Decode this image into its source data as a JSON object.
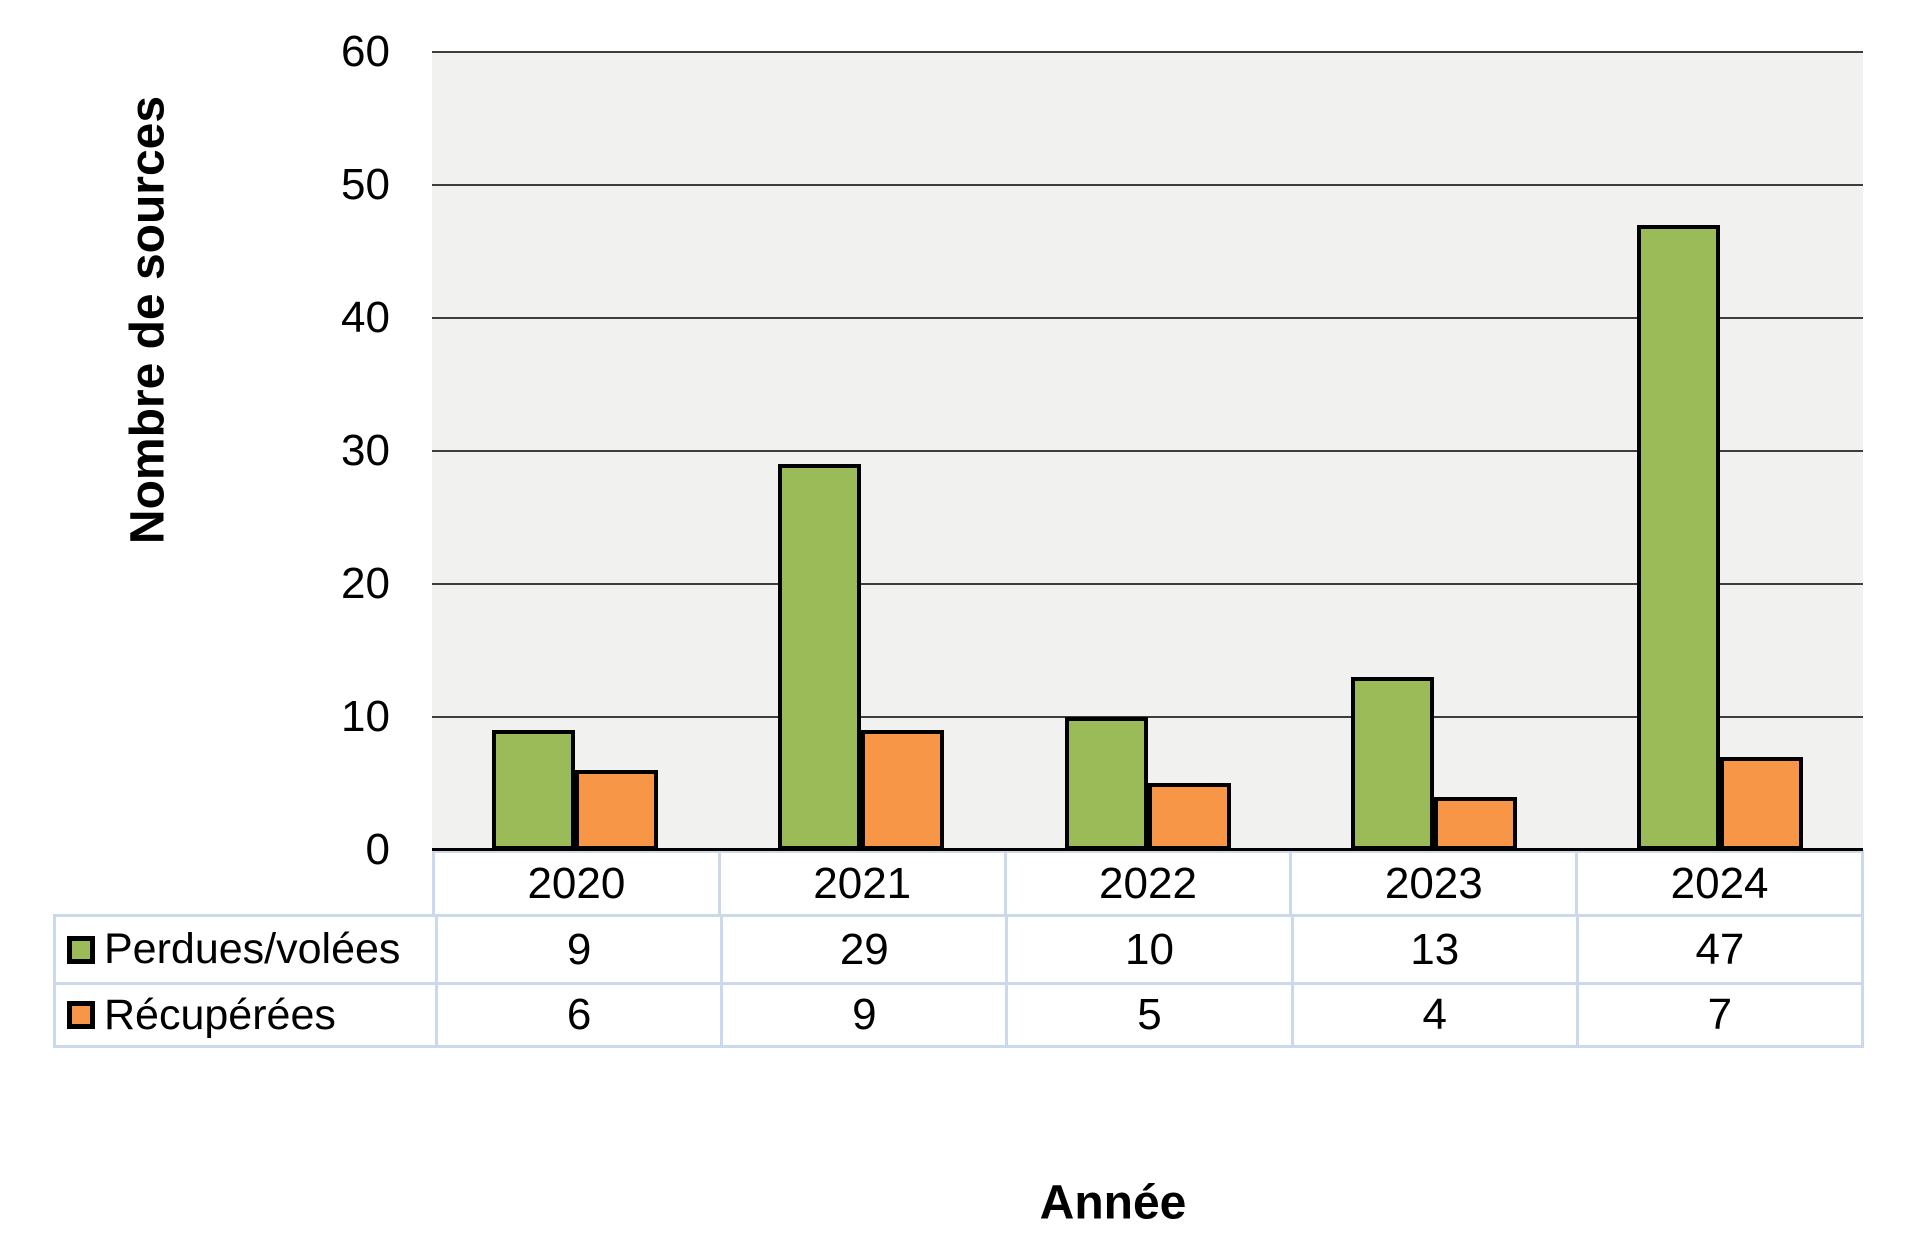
{
  "chart_data": {
    "type": "bar",
    "categories": [
      "2020",
      "2021",
      "2022",
      "2023",
      "2024"
    ],
    "series": [
      {
        "name": "Perdues/volées",
        "color": "#9bbb59",
        "values": [
          9,
          29,
          10,
          13,
          47
        ]
      },
      {
        "name": "Récupérées",
        "color": "#f79646",
        "values": [
          6,
          9,
          5,
          4,
          7
        ]
      }
    ],
    "title": "",
    "xlabel": "Année",
    "ylabel": "Nombre de sources",
    "ylim": [
      0,
      60
    ],
    "ytick_interval": 10,
    "yticks": [
      "0",
      "10",
      "20",
      "30",
      "40",
      "50",
      "60"
    ],
    "grid": true,
    "legend_position": "data-table-left",
    "plot_background": "#f1f1ef",
    "bar_border_color": "#000000",
    "table_border_color": "#ccd9ea"
  }
}
